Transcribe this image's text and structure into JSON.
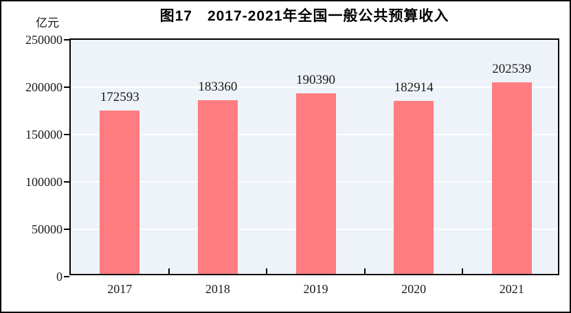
{
  "title": "图17　2017-2021年全国一般公共预算收入",
  "unit_label": "亿元",
  "chart_data": {
    "type": "bar",
    "title": "图17　2017-2021年全国一般公共预算收入",
    "categories": [
      "2017",
      "2018",
      "2019",
      "2020",
      "2021"
    ],
    "values": [
      172593,
      183360,
      190390,
      182914,
      202539
    ],
    "xlabel": "",
    "ylabel": "亿元",
    "ylim": [
      0,
      250000
    ],
    "yticks": [
      0,
      50000,
      100000,
      150000,
      200000,
      250000
    ],
    "grid": true,
    "gridline_color": "#FFFFFF",
    "legend": false,
    "bar_color": "#FF7C80",
    "plot_background": "#EDF3F8",
    "axis_color": "#000000",
    "label_color": "#1A1A1A"
  }
}
